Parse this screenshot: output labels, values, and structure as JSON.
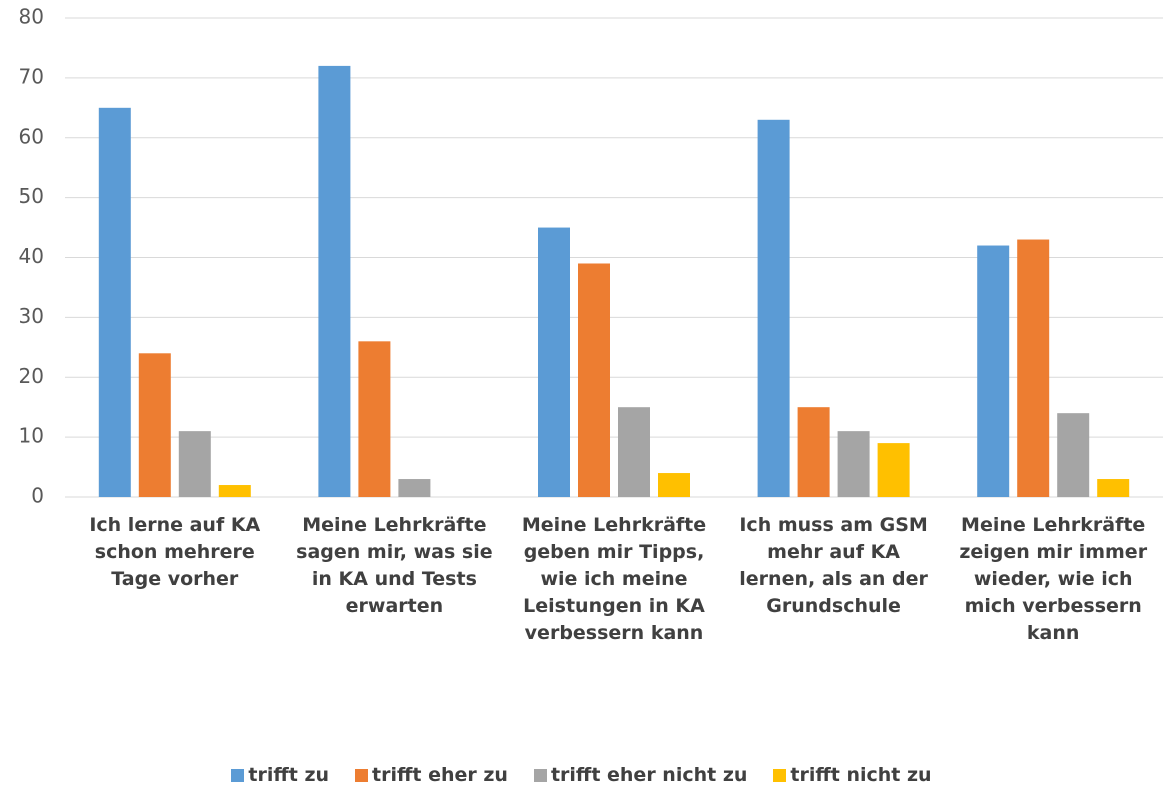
{
  "chart_data": {
    "type": "bar",
    "categories": [
      "Ich lerne auf KA schon mehrere Tage vorher",
      "Meine Lehrkräfte sagen mir, was sie in KA und Tests erwarten",
      "Meine Lehrkräfte geben mir Tipps, wie ich meine Leistungen in KA verbessern kann",
      "Ich muss am GSM mehr auf KA lernen, als an der Grundschule",
      "Meine Lehrkräfte zeigen mir immer wieder, wie ich mich verbessern kann"
    ],
    "series": [
      {
        "name": "trifft zu",
        "color": "#5b9bd5",
        "values": [
          65,
          72,
          45,
          63,
          42
        ]
      },
      {
        "name": "trifft eher zu",
        "color": "#ed7d31",
        "values": [
          24,
          26,
          39,
          15,
          43
        ]
      },
      {
        "name": "trifft eher nicht zu",
        "color": "#a5a5a5",
        "values": [
          11,
          3,
          15,
          11,
          14
        ]
      },
      {
        "name": "trifft nicht zu",
        "color": "#ffc000",
        "values": [
          2,
          0,
          4,
          9,
          3
        ]
      }
    ],
    "ylim": [
      0,
      80
    ],
    "yticks": [
      0,
      10,
      20,
      30,
      40,
      50,
      60,
      70,
      80
    ],
    "grid": true,
    "legend": "bottom"
  }
}
